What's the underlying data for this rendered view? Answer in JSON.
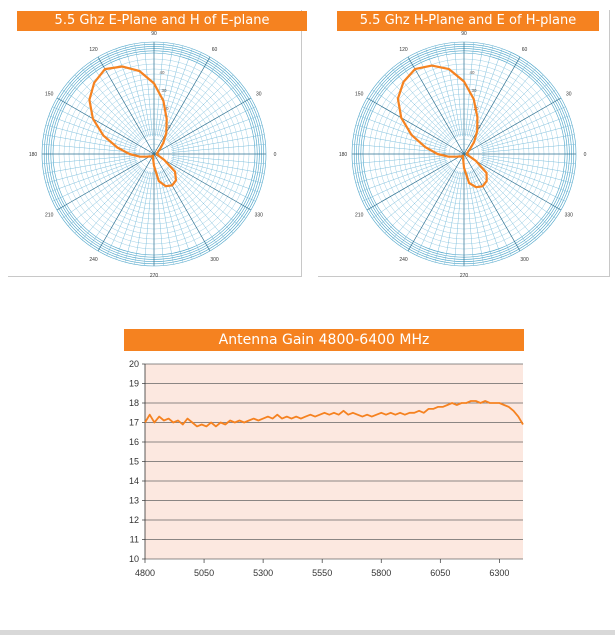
{
  "chart_data": [
    {
      "type": "polar",
      "title": "5.5 Ghz E-Plane and H of E-plane",
      "angle_labels": [
        "90",
        "60",
        "30",
        "0",
        "330",
        "300",
        "270",
        "240",
        "210",
        "180",
        "150",
        "120"
      ],
      "inner_labels": [
        "40",
        "30",
        "20",
        "10"
      ],
      "series": [
        {
          "color": "#f58220",
          "r": [
            0.02,
            0.03,
            0.04,
            0.05,
            0.08,
            0.15,
            0.25,
            0.38,
            0.55,
            0.72,
            0.86,
            0.95,
            1.0,
            0.95,
            0.86,
            0.72,
            0.55,
            0.38,
            0.25,
            0.15,
            0.08,
            0.05,
            0.04,
            0.03,
            0.02,
            0.03,
            0.05,
            0.12,
            0.28,
            0.35,
            0.37,
            0.35,
            0.28,
            0.12,
            0.05,
            0.03
          ]
        }
      ]
    },
    {
      "type": "polar",
      "title": "5.5 Ghz H-Plane and E of H-plane",
      "angle_labels": [
        "90",
        "60",
        "30",
        "0",
        "330",
        "300",
        "270",
        "240",
        "210",
        "180",
        "150",
        "120"
      ],
      "inner_labels": [
        "40",
        "30",
        "20",
        "10"
      ],
      "series": [
        {
          "color": "#f58220",
          "r": [
            0.02,
            0.03,
            0.04,
            0.05,
            0.08,
            0.16,
            0.27,
            0.4,
            0.57,
            0.74,
            0.88,
            0.96,
            1.0,
            0.96,
            0.88,
            0.74,
            0.57,
            0.4,
            0.27,
            0.16,
            0.08,
            0.05,
            0.04,
            0.03,
            0.02,
            0.03,
            0.05,
            0.14,
            0.3,
            0.36,
            0.38,
            0.36,
            0.3,
            0.14,
            0.05,
            0.03
          ]
        }
      ]
    },
    {
      "type": "line",
      "title": "Antenna Gain 4800-6400 MHz",
      "x": [
        4800,
        4820,
        4840,
        4860,
        4880,
        4900,
        4920,
        4940,
        4960,
        4980,
        5000,
        5020,
        5040,
        5060,
        5080,
        5100,
        5120,
        5140,
        5160,
        5180,
        5200,
        5220,
        5240,
        5260,
        5280,
        5300,
        5320,
        5340,
        5360,
        5380,
        5400,
        5420,
        5440,
        5460,
        5480,
        5500,
        5520,
        5540,
        5560,
        5580,
        5600,
        5620,
        5640,
        5660,
        5680,
        5700,
        5720,
        5740,
        5760,
        5780,
        5800,
        5820,
        5840,
        5860,
        5880,
        5900,
        5920,
        5940,
        5960,
        5980,
        6000,
        6020,
        6040,
        6060,
        6080,
        6100,
        6120,
        6140,
        6160,
        6180,
        6200,
        6220,
        6240,
        6260,
        6280,
        6300,
        6320,
        6340,
        6360,
        6380,
        6400
      ],
      "y": [
        17.0,
        17.4,
        17.0,
        17.3,
        17.1,
        17.2,
        17.0,
        17.1,
        16.9,
        17.2,
        17.0,
        16.8,
        16.9,
        16.8,
        17.0,
        16.8,
        17.0,
        16.9,
        17.1,
        17.0,
        17.1,
        17.0,
        17.1,
        17.2,
        17.1,
        17.2,
        17.3,
        17.2,
        17.4,
        17.2,
        17.3,
        17.2,
        17.3,
        17.2,
        17.3,
        17.4,
        17.3,
        17.4,
        17.5,
        17.4,
        17.5,
        17.4,
        17.6,
        17.4,
        17.5,
        17.4,
        17.3,
        17.4,
        17.3,
        17.4,
        17.5,
        17.4,
        17.5,
        17.4,
        17.5,
        17.4,
        17.5,
        17.5,
        17.6,
        17.5,
        17.7,
        17.7,
        17.8,
        17.8,
        17.9,
        18.0,
        17.9,
        18.0,
        18.0,
        18.1,
        18.1,
        18.0,
        18.1,
        18.0,
        18.0,
        18.0,
        17.9,
        17.8,
        17.6,
        17.3,
        16.9
      ],
      "xticks": [
        4800,
        5050,
        5300,
        5550,
        5800,
        6050,
        6300
      ],
      "yticks": [
        10,
        11,
        12,
        13,
        14,
        15,
        16,
        17,
        18,
        19,
        20
      ],
      "xlim": [
        4800,
        6400
      ],
      "ylim": [
        10,
        20
      ],
      "xlabel": "",
      "ylabel": "",
      "grid": true,
      "colors": {
        "line": "#f58220",
        "background": "#fce8e0",
        "grid": "#666666"
      }
    }
  ]
}
